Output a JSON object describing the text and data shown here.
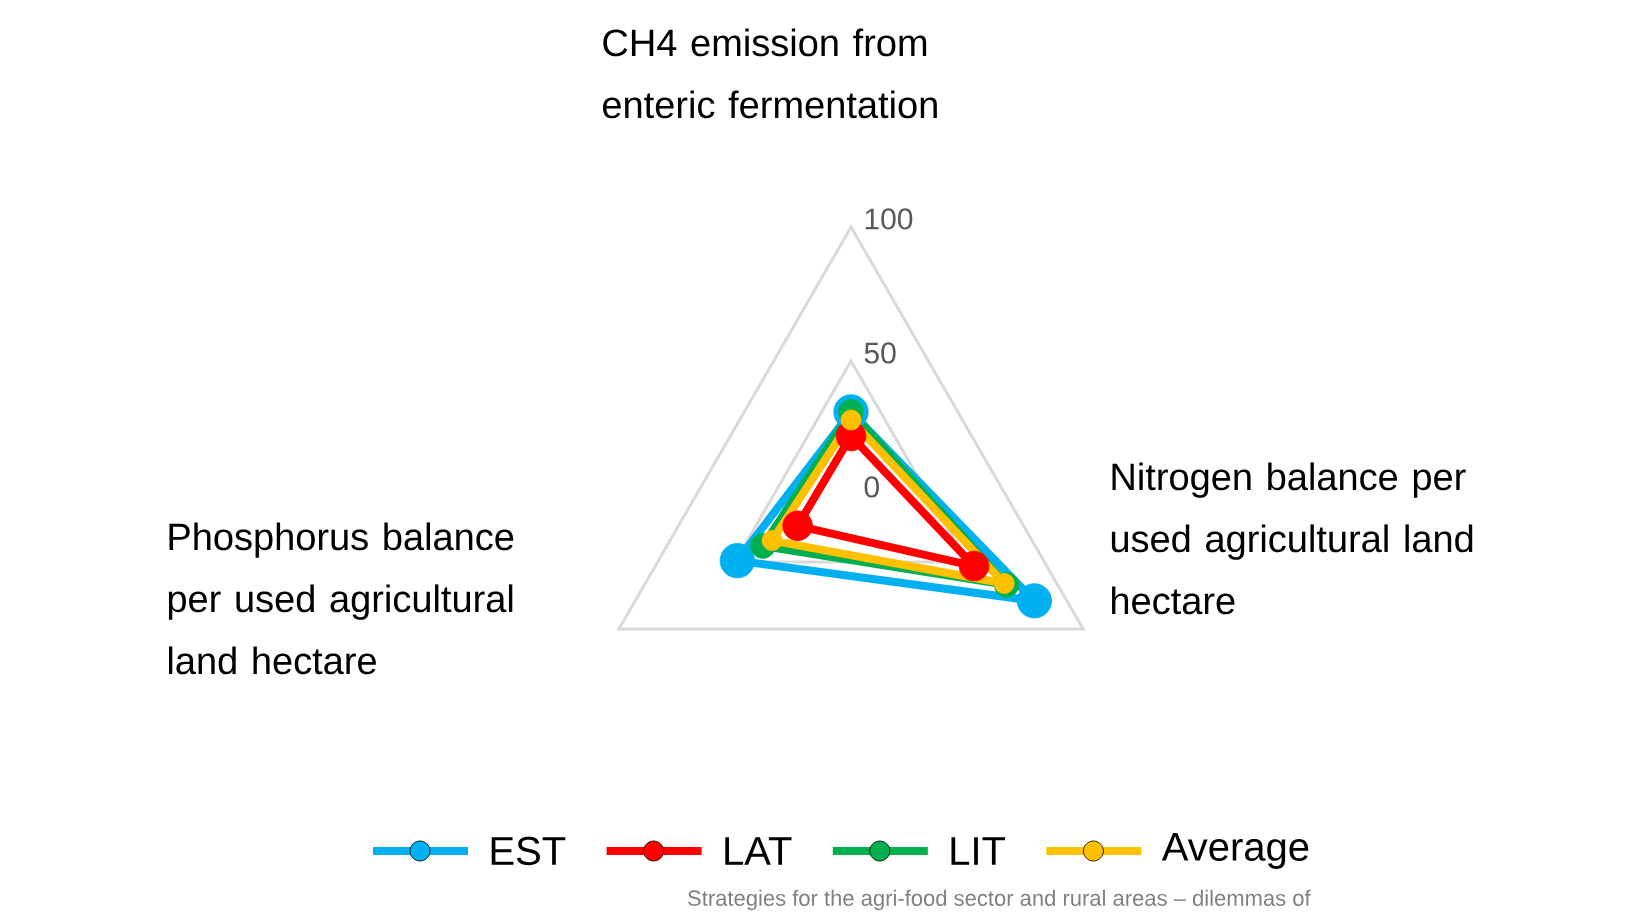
{
  "chart_data": {
    "type": "radar",
    "categories": [
      "CH4 emission from enteric fermentation",
      "Nitrogen balance per used agricultural land hectare",
      "Phosphorus balance per used agricultural land hectare"
    ],
    "series": [
      {
        "name": "EST",
        "color": "#00b0f0",
        "values": [
          31,
          79,
          49
        ]
      },
      {
        "name": "LAT",
        "color": "#ff0000",
        "values": [
          22,
          53,
          23
        ]
      },
      {
        "name": "LIT",
        "color": "#00b050",
        "values": [
          31,
          67,
          38
        ]
      },
      {
        "name": "Average",
        "color": "#ffc000",
        "values": [
          28,
          66,
          34
        ]
      }
    ],
    "ylim": [
      0,
      100
    ],
    "yticks": [
      0,
      50,
      100
    ],
    "grid": true,
    "legend": "bottom",
    "marker": "circle",
    "line_style": "solid",
    "annotations": [
      "Strategies for the agri-food sector and rural areas – dilemmas of"
    ]
  }
}
